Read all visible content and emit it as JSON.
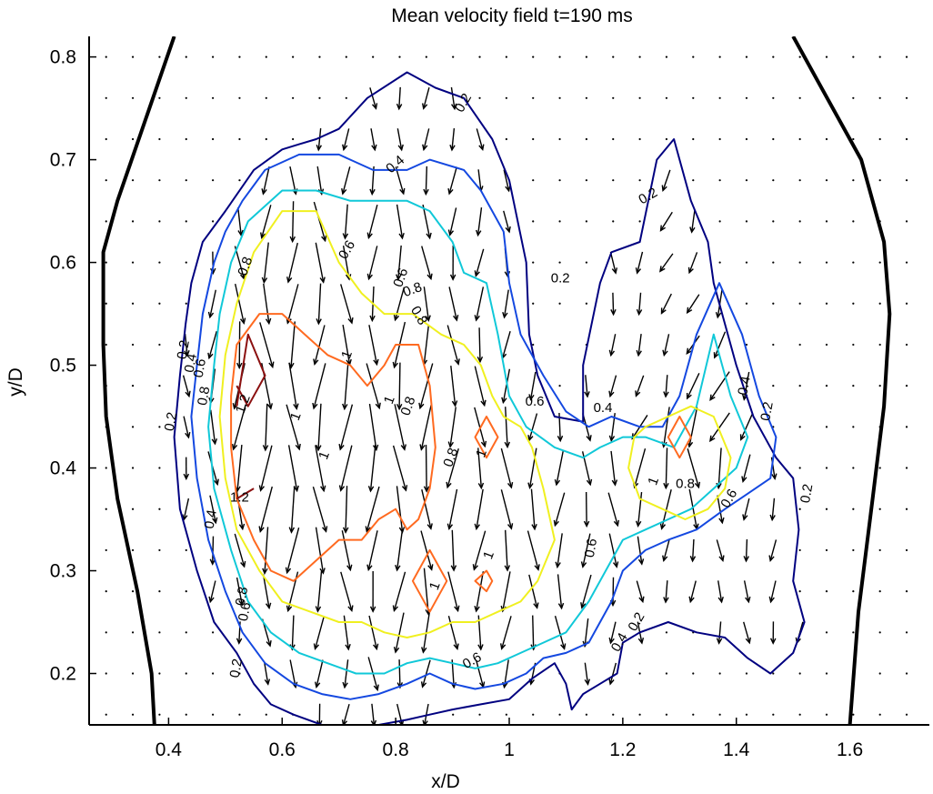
{
  "chart_data": {
    "type": "quiver-contour",
    "title": "Mean velocity field t=190 ms",
    "xlabel": "x/D",
    "ylabel": "y/D",
    "xlim": [
      0.26,
      1.74
    ],
    "ylim": [
      0.15,
      0.82
    ],
    "grid": false,
    "xticks": [
      {
        "value": 0.4,
        "label": "0.4"
      },
      {
        "value": 0.6,
        "label": "0.6"
      },
      {
        "value": 0.8,
        "label": "0.8"
      },
      {
        "value": 1.0,
        "label": "1"
      },
      {
        "value": 1.2,
        "label": "1.2"
      },
      {
        "value": 1.4,
        "label": "1.4"
      },
      {
        "value": 1.6,
        "label": "1.6"
      }
    ],
    "yticks": [
      {
        "value": 0.2,
        "label": "0.2"
      },
      {
        "value": 0.3,
        "label": "0.3"
      },
      {
        "value": 0.4,
        "label": "0.4"
      },
      {
        "value": 0.5,
        "label": "0.5"
      },
      {
        "value": 0.6,
        "label": "0.6"
      },
      {
        "value": 0.7,
        "label": "0.7"
      },
      {
        "value": 0.8,
        "label": "0.8"
      }
    ],
    "wall_lines": [
      {
        "name": "left wall",
        "x": [
          0.41,
          0.36,
          0.31,
          0.285,
          0.285,
          0.29,
          0.31,
          0.345,
          0.37,
          0.375
        ],
        "y": [
          0.82,
          0.74,
          0.66,
          0.61,
          0.52,
          0.45,
          0.37,
          0.28,
          0.2,
          0.15
        ]
      },
      {
        "name": "right wall",
        "x": [
          1.5,
          1.56,
          1.62,
          1.66,
          1.67,
          1.66,
          1.64,
          1.615,
          1.6
        ],
        "y": [
          0.82,
          0.76,
          0.7,
          0.62,
          0.55,
          0.46,
          0.37,
          0.26,
          0.15
        ]
      }
    ],
    "contours": [
      {
        "level": 0.2,
        "color": "#000080",
        "closed": true,
        "x": [
          0.82,
          0.87,
          0.92,
          0.97,
          1.0,
          1.03,
          1.035,
          1.05,
          1.08,
          1.13,
          1.13,
          1.16,
          1.18,
          1.23,
          1.26,
          1.29,
          1.32,
          1.35,
          1.36,
          1.4,
          1.43,
          1.47,
          1.5,
          1.51,
          1.5,
          1.52,
          1.5,
          1.46,
          1.42,
          1.38,
          1.33,
          1.28,
          1.23,
          1.2,
          1.19,
          1.16,
          1.13,
          1.11,
          1.1,
          1.08,
          1.04,
          1.0,
          0.95,
          0.9,
          0.86,
          0.82,
          0.77,
          0.72,
          0.67,
          0.62,
          0.58,
          0.55,
          0.52,
          0.48,
          0.45,
          0.42,
          0.41,
          0.42,
          0.43,
          0.44,
          0.46,
          0.5,
          0.55,
          0.6,
          0.63,
          0.66,
          0.7,
          0.75
        ],
        "y": [
          0.785,
          0.77,
          0.76,
          0.72,
          0.68,
          0.6,
          0.53,
          0.49,
          0.45,
          0.445,
          0.5,
          0.58,
          0.61,
          0.62,
          0.7,
          0.72,
          0.66,
          0.62,
          0.58,
          0.5,
          0.45,
          0.41,
          0.39,
          0.34,
          0.29,
          0.25,
          0.22,
          0.2,
          0.215,
          0.235,
          0.24,
          0.25,
          0.24,
          0.23,
          0.2,
          0.19,
          0.18,
          0.165,
          0.19,
          0.21,
          0.195,
          0.175,
          0.17,
          0.165,
          0.16,
          0.155,
          0.15,
          0.15,
          0.15,
          0.16,
          0.17,
          0.19,
          0.22,
          0.25,
          0.3,
          0.36,
          0.43,
          0.49,
          0.54,
          0.58,
          0.62,
          0.65,
          0.69,
          0.71,
          0.715,
          0.72,
          0.73,
          0.76
        ]
      },
      {
        "level": 0.4,
        "color": "#1448e0",
        "closed": true,
        "x": [
          0.63,
          0.7,
          0.76,
          0.82,
          0.86,
          0.92,
          0.95,
          0.99,
          1.0,
          1.02,
          1.06,
          1.1,
          1.14,
          1.18,
          1.23,
          1.27,
          1.3,
          1.33,
          1.37,
          1.41,
          1.44,
          1.47,
          1.46,
          1.42,
          1.38,
          1.33,
          1.28,
          1.24,
          1.2,
          1.18,
          1.14,
          1.1,
          1.06,
          1.03,
          0.99,
          0.94,
          0.9,
          0.86,
          0.82,
          0.77,
          0.72,
          0.67,
          0.62,
          0.57,
          0.53,
          0.5,
          0.47,
          0.45,
          0.44,
          0.45,
          0.46,
          0.48,
          0.5,
          0.53,
          0.57
        ],
        "y": [
          0.705,
          0.705,
          0.69,
          0.69,
          0.7,
          0.69,
          0.67,
          0.63,
          0.58,
          0.53,
          0.49,
          0.455,
          0.44,
          0.45,
          0.44,
          0.44,
          0.47,
          0.53,
          0.58,
          0.53,
          0.47,
          0.43,
          0.39,
          0.375,
          0.36,
          0.34,
          0.33,
          0.32,
          0.3,
          0.27,
          0.23,
          0.22,
          0.215,
          0.2,
          0.19,
          0.185,
          0.19,
          0.2,
          0.19,
          0.18,
          0.175,
          0.18,
          0.19,
          0.21,
          0.24,
          0.28,
          0.33,
          0.39,
          0.45,
          0.5,
          0.55,
          0.6,
          0.63,
          0.66,
          0.69
        ]
      },
      {
        "level": 0.6,
        "color": "#10c8d8",
        "closed": true,
        "x": [
          0.6,
          0.66,
          0.72,
          0.77,
          0.82,
          0.86,
          0.9,
          0.92,
          0.96,
          0.98,
          0.99,
          1.0,
          1.03,
          1.08,
          1.13,
          1.16,
          1.2,
          1.24,
          1.29,
          1.33,
          1.36,
          1.39,
          1.42,
          1.4,
          1.36,
          1.32,
          1.28,
          1.24,
          1.2,
          1.17,
          1.14,
          1.1,
          1.06,
          1.02,
          0.98,
          0.94,
          0.9,
          0.86,
          0.82,
          0.78,
          0.73,
          0.68,
          0.63,
          0.58,
          0.54,
          0.51,
          0.48,
          0.47,
          0.48,
          0.49,
          0.51,
          0.54
        ],
        "y": [
          0.67,
          0.67,
          0.66,
          0.66,
          0.66,
          0.65,
          0.62,
          0.59,
          0.58,
          0.53,
          0.5,
          0.47,
          0.44,
          0.42,
          0.41,
          0.42,
          0.43,
          0.43,
          0.42,
          0.46,
          0.53,
          0.47,
          0.43,
          0.4,
          0.38,
          0.36,
          0.35,
          0.34,
          0.33,
          0.3,
          0.27,
          0.24,
          0.23,
          0.22,
          0.21,
          0.205,
          0.21,
          0.215,
          0.21,
          0.2,
          0.2,
          0.21,
          0.22,
          0.24,
          0.27,
          0.32,
          0.38,
          0.44,
          0.5,
          0.55,
          0.6,
          0.64
        ]
      },
      {
        "level": 0.8,
        "color": "#f0f020",
        "closed": true,
        "x": [
          0.6,
          0.66,
          0.7,
          0.74,
          0.78,
          0.83,
          0.88,
          0.92,
          0.95,
          0.97,
          0.99,
          1.02,
          1.04,
          1.06,
          1.08,
          1.05,
          1.02,
          0.98,
          0.94,
          0.9,
          0.86,
          0.82,
          0.78,
          0.74,
          0.7,
          0.65,
          0.6,
          0.56,
          0.52,
          0.5,
          0.49,
          0.5,
          0.52,
          0.55
        ],
        "y": [
          0.65,
          0.65,
          0.6,
          0.57,
          0.55,
          0.55,
          0.53,
          0.52,
          0.5,
          0.47,
          0.45,
          0.44,
          0.42,
          0.38,
          0.33,
          0.29,
          0.27,
          0.26,
          0.25,
          0.25,
          0.24,
          0.235,
          0.24,
          0.25,
          0.25,
          0.26,
          0.27,
          0.3,
          0.34,
          0.39,
          0.45,
          0.51,
          0.56,
          0.61
        ]
      },
      {
        "level": 0.8,
        "color": "#f0f020",
        "closed": true,
        "x": [
          1.24,
          1.28,
          1.32,
          1.36,
          1.39,
          1.38,
          1.35,
          1.31,
          1.27,
          1.23,
          1.21,
          1.22
        ],
        "y": [
          0.44,
          0.45,
          0.46,
          0.45,
          0.41,
          0.38,
          0.36,
          0.35,
          0.36,
          0.37,
          0.4,
          0.43
        ]
      },
      {
        "level": 1,
        "color": "#ff6a20",
        "closed": true,
        "x": [
          0.56,
          0.6,
          0.64,
          0.68,
          0.72,
          0.75,
          0.78,
          0.8,
          0.84,
          0.86,
          0.87,
          0.86,
          0.84,
          0.82,
          0.8,
          0.77,
          0.74,
          0.7,
          0.66,
          0.62,
          0.58,
          0.55,
          0.52,
          0.51,
          0.51,
          0.52
        ],
        "y": [
          0.55,
          0.55,
          0.53,
          0.51,
          0.5,
          0.48,
          0.5,
          0.52,
          0.52,
          0.48,
          0.42,
          0.38,
          0.35,
          0.34,
          0.36,
          0.35,
          0.33,
          0.33,
          0.31,
          0.29,
          0.3,
          0.33,
          0.37,
          0.42,
          0.47,
          0.52
        ]
      },
      {
        "level": 1,
        "color": "#ff6a20",
        "closed": true,
        "x": [
          0.96,
          0.98,
          0.96,
          0.94
        ],
        "y": [
          0.45,
          0.43,
          0.41,
          0.43
        ]
      },
      {
        "level": 1,
        "color": "#ff6a20",
        "closed": true,
        "x": [
          0.86,
          0.89,
          0.86,
          0.83
        ],
        "y": [
          0.32,
          0.29,
          0.26,
          0.29
        ]
      },
      {
        "level": 1,
        "color": "#ff6a20",
        "closed": true,
        "x": [
          0.96,
          0.97,
          0.96,
          0.94
        ],
        "y": [
          0.3,
          0.29,
          0.28,
          0.29
        ]
      },
      {
        "level": 1,
        "color": "#ff6a20",
        "closed": true,
        "x": [
          1.3,
          1.32,
          1.3,
          1.28
        ],
        "y": [
          0.45,
          0.43,
          0.41,
          0.43
        ]
      },
      {
        "level": 1.2,
        "color": "#8b1010",
        "closed": false,
        "x": [
          0.52,
          0.54,
          0.57,
          0.54,
          0.52
        ],
        "y": [
          0.46,
          0.53,
          0.49,
          0.46,
          0.48
        ]
      },
      {
        "level": 1.2,
        "color": "#8b1010",
        "closed": false,
        "x": [
          0.52,
          0.55
        ],
        "y": [
          0.37,
          0.38
        ]
      }
    ],
    "contour_labels": [
      {
        "text": "0.2",
        "x": 0.92,
        "y": 0.755,
        "angle": -60
      },
      {
        "text": "0.4",
        "x": 0.8,
        "y": 0.695,
        "angle": -40
      },
      {
        "text": "0.6",
        "x": 0.715,
        "y": 0.612,
        "angle": -60
      },
      {
        "text": "0.6",
        "x": 0.81,
        "y": 0.585,
        "angle": -70
      },
      {
        "text": "0.8",
        "x": 0.83,
        "y": 0.573,
        "angle": -20
      },
      {
        "text": "0.8",
        "x": 0.84,
        "y": 0.548,
        "angle": 60
      },
      {
        "text": "0.8",
        "x": 0.536,
        "y": 0.596,
        "angle": -70
      },
      {
        "text": "0.2",
        "x": 1.09,
        "y": 0.584,
        "angle": 0
      },
      {
        "text": "0.2",
        "x": 1.245,
        "y": 0.664,
        "angle": -30
      },
      {
        "text": "0.2",
        "x": 0.427,
        "y": 0.515,
        "angle": -80
      },
      {
        "text": "0.4",
        "x": 0.44,
        "y": 0.502,
        "angle": -80
      },
      {
        "text": "0.6",
        "x": 0.456,
        "y": 0.497,
        "angle": -80
      },
      {
        "text": "0.8",
        "x": 0.463,
        "y": 0.47,
        "angle": -80
      },
      {
        "text": "0.2",
        "x": 0.405,
        "y": 0.445,
        "angle": -80
      },
      {
        "text": "1.2",
        "x": 0.532,
        "y": 0.462,
        "angle": -70
      },
      {
        "text": "1",
        "x": 0.625,
        "y": 0.45,
        "angle": -70
      },
      {
        "text": "1",
        "x": 0.715,
        "y": 0.51,
        "angle": -70
      },
      {
        "text": "1",
        "x": 0.79,
        "y": 0.466,
        "angle": -70
      },
      {
        "text": "0.8",
        "x": 0.823,
        "y": 0.46,
        "angle": -70
      },
      {
        "text": "1",
        "x": 0.675,
        "y": 0.412,
        "angle": -70
      },
      {
        "text": "0.8",
        "x": 0.898,
        "y": 0.41,
        "angle": -70
      },
      {
        "text": "1",
        "x": 0.952,
        "y": 0.414,
        "angle": -70
      },
      {
        "text": "0.6",
        "x": 1.045,
        "y": 0.464,
        "angle": 0
      },
      {
        "text": "0.4",
        "x": 1.165,
        "y": 0.458,
        "angle": 0
      },
      {
        "text": "1.2",
        "x": 0.525,
        "y": 0.371,
        "angle": 0
      },
      {
        "text": "0.4",
        "x": 0.475,
        "y": 0.35,
        "angle": -80
      },
      {
        "text": "1",
        "x": 0.87,
        "y": 0.285,
        "angle": -70
      },
      {
        "text": "0.6",
        "x": 1.145,
        "y": 0.322,
        "angle": -80
      },
      {
        "text": "1",
        "x": 1.255,
        "y": 0.387,
        "angle": -70
      },
      {
        "text": "0.8",
        "x": 1.31,
        "y": 0.384,
        "angle": 0
      },
      {
        "text": "0.6",
        "x": 1.388,
        "y": 0.37,
        "angle": -60
      },
      {
        "text": "0.4",
        "x": 1.415,
        "y": 0.48,
        "angle": -80
      },
      {
        "text": "0.2",
        "x": 1.455,
        "y": 0.455,
        "angle": -80
      },
      {
        "text": "0.2",
        "x": 1.525,
        "y": 0.375,
        "angle": -80
      },
      {
        "text": "0.6",
        "x": 0.535,
        "y": 0.26,
        "angle": -80
      },
      {
        "text": "0.8",
        "x": 0.53,
        "y": 0.275,
        "angle": -80
      },
      {
        "text": "0.2",
        "x": 0.52,
        "y": 0.205,
        "angle": -80
      },
      {
        "text": "0.6",
        "x": 0.935,
        "y": 0.212,
        "angle": -30
      },
      {
        "text": "0.4",
        "x": 1.195,
        "y": 0.23,
        "angle": -60
      },
      {
        "text": "0.2",
        "x": 1.225,
        "y": 0.25,
        "angle": -60
      },
      {
        "text": "1",
        "x": 0.965,
        "y": 0.315,
        "angle": -70
      }
    ],
    "vector_field": {
      "x_spacing": 0.047,
      "y_spacing": 0.04,
      "x_range": [
        0.29,
        1.72
      ],
      "y_range": [
        0.16,
        0.81
      ],
      "scale_note": "arrow length proportional to local speed; flow predominantly in -y direction"
    }
  }
}
